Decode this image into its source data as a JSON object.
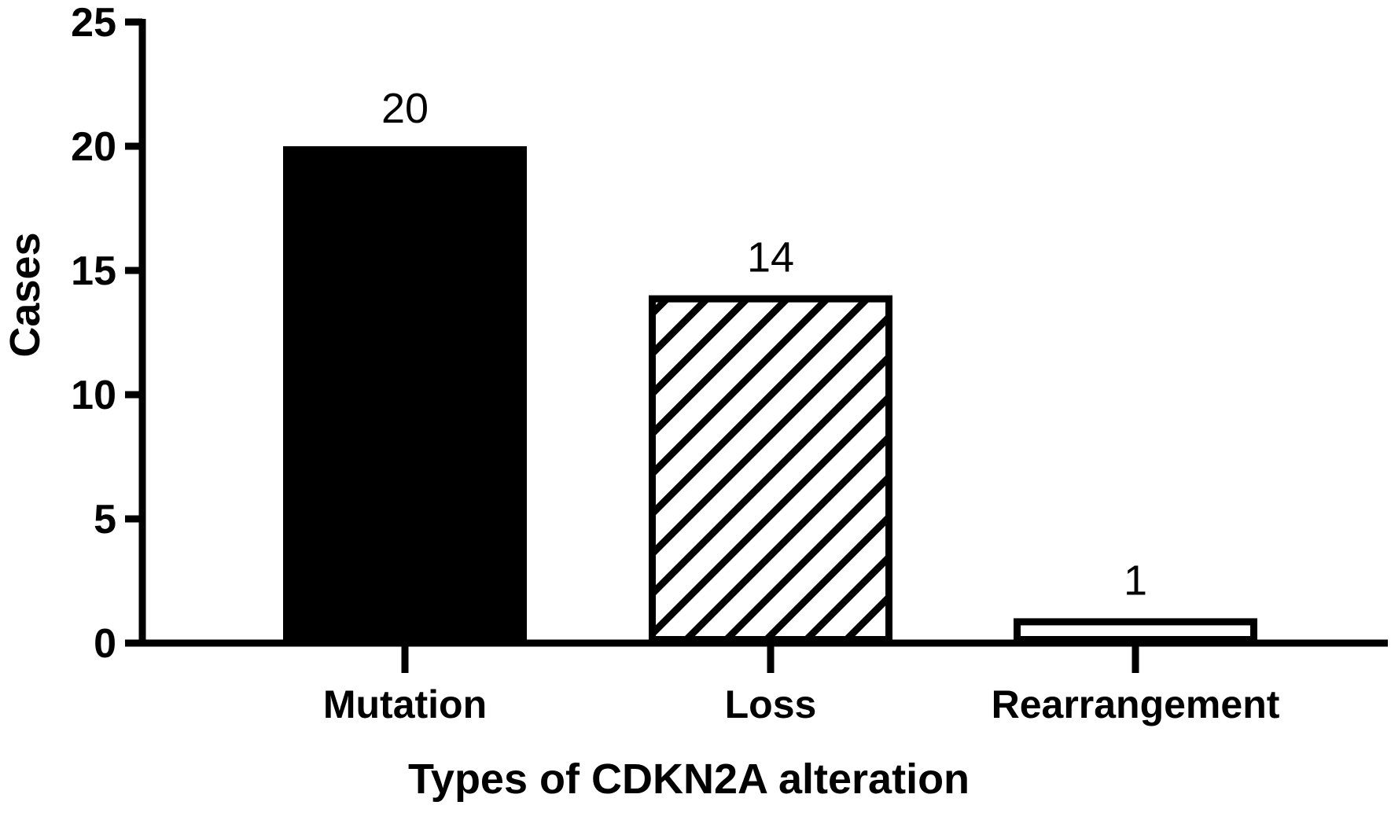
{
  "chart_data": {
    "type": "bar",
    "title": "",
    "xlabel": "Types of CDKN2A alteration",
    "ylabel": "Cases",
    "categories": [
      "Mutation",
      "Loss",
      "Rearrangement"
    ],
    "values": [
      20,
      14,
      1
    ],
    "data_labels": [
      "20",
      "14",
      "1"
    ],
    "bar_fills": [
      "solid-black",
      "diagonal-hatch",
      "white"
    ],
    "ylim": [
      0,
      25
    ],
    "yticks": [
      0,
      5,
      10,
      15,
      20,
      25
    ],
    "ytick_labels": [
      "0",
      "5",
      "10",
      "15",
      "20",
      "25"
    ],
    "grid": false,
    "legend": "none",
    "colors": {
      "bar_outline": "#000000",
      "solid_fill": "#000000",
      "hatch": "#000000",
      "background": "#ffffff"
    }
  }
}
